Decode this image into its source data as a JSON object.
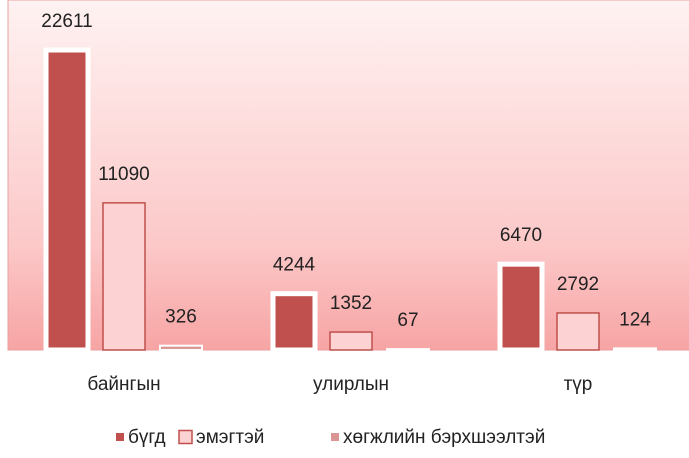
{
  "chart_data": {
    "type": "bar",
    "categories": [
      "байнгын",
      "улирлын",
      "түр"
    ],
    "series": [
      {
        "name": "бүгд",
        "color": "#c0504d",
        "values": [
          22611,
          4244,
          6470
        ]
      },
      {
        "name": "эмэгтэй",
        "color": "#fcd3d2",
        "values": [
          11090,
          1352,
          2792
        ]
      },
      {
        "name": "хөгжлийн бэрхшээлтэй",
        "color": "#d99694",
        "values": [
          326,
          67,
          124
        ]
      }
    ]
  }
}
